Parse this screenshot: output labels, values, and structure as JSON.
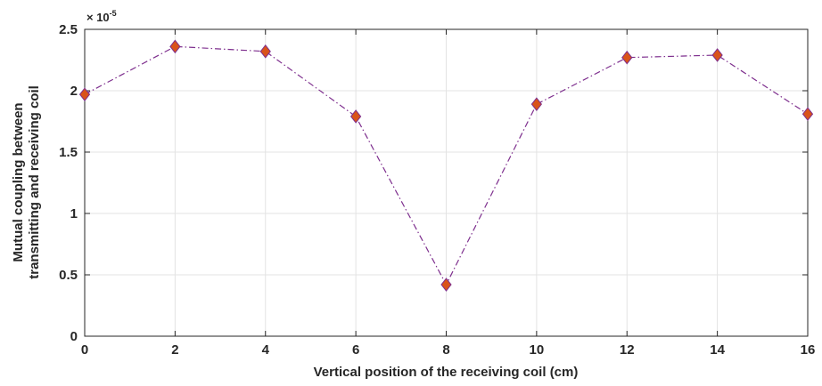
{
  "chart_data": {
    "type": "line",
    "xlabel": "Vertical position of the receiving coil (cm)",
    "ylabel_lines": [
      "Mutual coupling between",
      "transmitting and receiving coil"
    ],
    "y_exponent_base": "× 10",
    "y_exponent_power": "-5",
    "xlim": [
      0,
      16
    ],
    "ylim": [
      0,
      2.5
    ],
    "x_ticks": [
      0,
      2,
      4,
      6,
      8,
      10,
      12,
      14,
      16
    ],
    "y_ticks": [
      0,
      0.5,
      1,
      1.5,
      2,
      2.5
    ],
    "grid": true,
    "series": [
      {
        "x": [
          0,
          2,
          4,
          6,
          8,
          10,
          12,
          14,
          16
        ],
        "y": [
          1.97,
          2.36,
          2.32,
          1.79,
          0.42,
          1.89,
          2.27,
          2.29,
          1.81
        ],
        "line_style": "dash-dot",
        "line_color": "#7e2f8e",
        "marker": "diamond",
        "marker_fill": "#d95319",
        "marker_edge": "#7e2f8e"
      }
    ]
  }
}
